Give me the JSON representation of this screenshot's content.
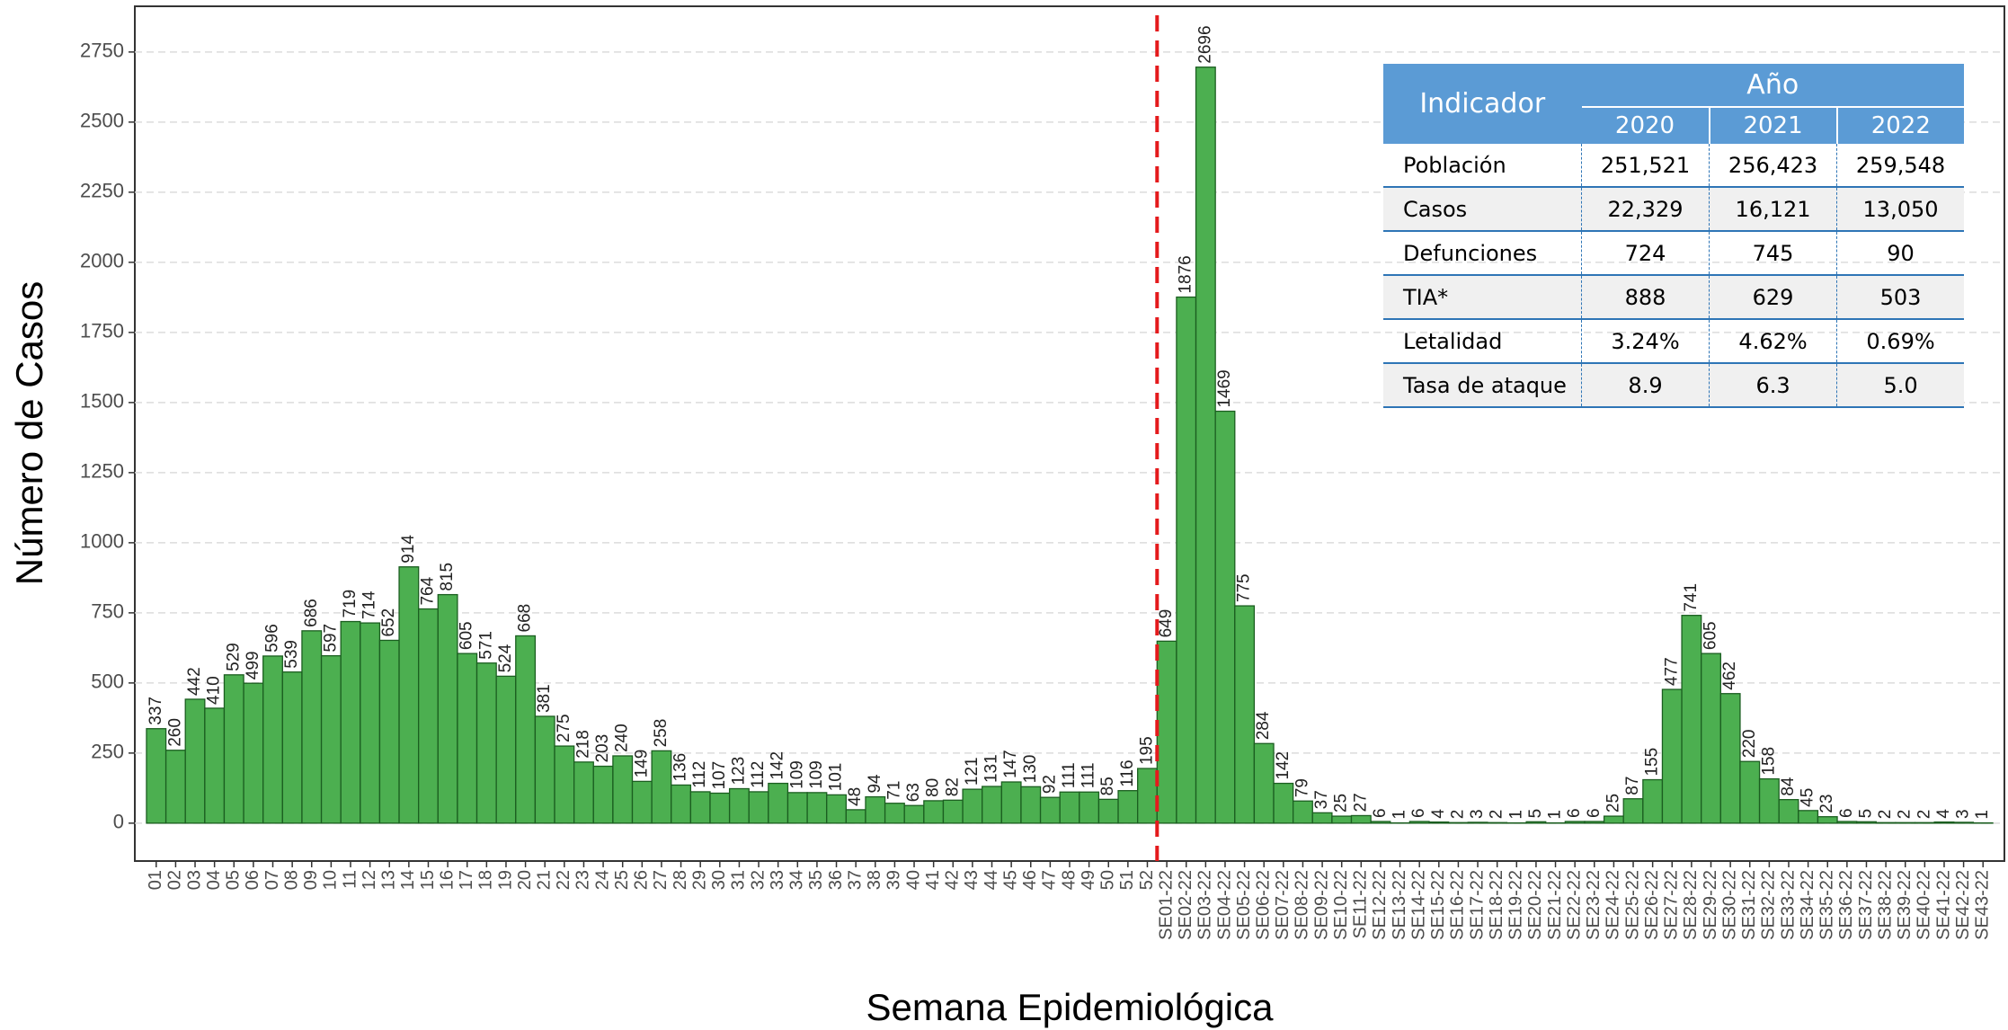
{
  "chart_data": {
    "type": "bar",
    "y_label": "Número de Casos",
    "x_label": "Semana Epidemiológica",
    "categories": [
      "01",
      "02",
      "03",
      "04",
      "05",
      "06",
      "07",
      "08",
      "09",
      "10",
      "11",
      "12",
      "13",
      "14",
      "15",
      "16",
      "17",
      "18",
      "19",
      "20",
      "21",
      "22",
      "23",
      "24",
      "25",
      "26",
      "27",
      "28",
      "29",
      "30",
      "31",
      "32",
      "33",
      "34",
      "35",
      "36",
      "37",
      "38",
      "39",
      "40",
      "41",
      "42",
      "43",
      "44",
      "45",
      "46",
      "47",
      "48",
      "49",
      "50",
      "51",
      "52",
      "SE01-22",
      "SE02-22",
      "SE03-22",
      "SE04-22",
      "SE05-22",
      "SE06-22",
      "SE07-22",
      "SE08-22",
      "SE09-22",
      "SE10-22",
      "SE11-22",
      "SE12-22",
      "SE13-22",
      "SE14-22",
      "SE15-22",
      "SE16-22",
      "SE17-22",
      "SE18-22",
      "SE19-22",
      "SE20-22",
      "SE21-22",
      "SE22-22",
      "SE23-22",
      "SE24-22",
      "SE25-22",
      "SE26-22",
      "SE27-22",
      "SE28-22",
      "SE29-22",
      "SE30-22",
      "SE31-22",
      "SE32-22",
      "SE33-22",
      "SE34-22",
      "SE35-22",
      "SE36-22",
      "SE37-22",
      "SE38-22",
      "SE39-22",
      "SE40-22",
      "SE41-22",
      "SE42-22",
      "SE43-22"
    ],
    "values": [
      337,
      260,
      442,
      410,
      529,
      499,
      596,
      539,
      686,
      597,
      719,
      714,
      652,
      914,
      764,
      815,
      605,
      571,
      524,
      668,
      381,
      275,
      218,
      203,
      240,
      149,
      258,
      136,
      112,
      107,
      123,
      112,
      142,
      109,
      109,
      101,
      48,
      94,
      71,
      63,
      80,
      82,
      121,
      131,
      147,
      130,
      92,
      111,
      111,
      85,
      116,
      195,
      649,
      1876,
      2696,
      1469,
      775,
      284,
      142,
      79,
      37,
      25,
      27,
      6,
      1,
      6,
      4,
      2,
      3,
      2,
      1,
      5,
      1,
      6,
      6,
      25,
      87,
      155,
      477,
      741,
      605,
      462,
      220,
      158,
      84,
      45,
      23,
      6,
      5,
      2,
      2,
      2,
      4,
      3,
      1
    ],
    "color": "#4caf50",
    "edge_color": "#1b5e20",
    "ylim": [
      -135,
      2913
    ],
    "yticks": [
      0,
      250,
      500,
      750,
      1000,
      1250,
      1500,
      1750,
      2000,
      2250,
      2500,
      2750
    ],
    "grid": true
  },
  "table": {
    "header": {
      "indicator": "Indicador",
      "year_group": "Año",
      "years": [
        "2020",
        "2021",
        "2022"
      ]
    },
    "rows": [
      [
        "Población",
        "251,521",
        "256,423",
        "259,548"
      ],
      [
        "Casos",
        "22,329",
        "16,121",
        "13,050"
      ],
      [
        "Defunciones",
        "724",
        "745",
        "90"
      ],
      [
        "TIA*",
        "888",
        "629",
        "503"
      ],
      [
        "Letalidad",
        "3.24%",
        "4.62%",
        "0.69%"
      ],
      [
        "Tasa de ataque",
        "8.9",
        "6.3",
        "5.0"
      ]
    ]
  }
}
